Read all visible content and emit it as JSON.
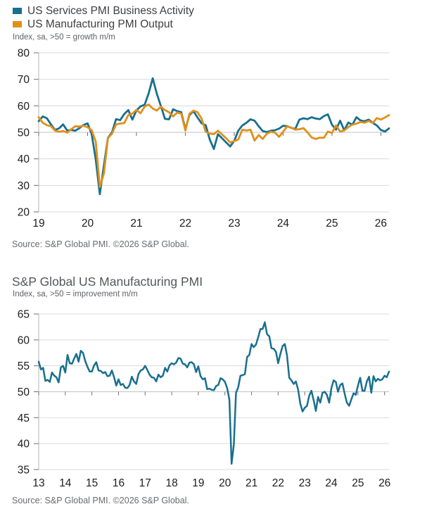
{
  "colors": {
    "teal": "#186f8e",
    "orange": "#e0901a",
    "grid": "#d9d9d9",
    "baseline": "#c0c0c0",
    "axis": "#b5b5b5",
    "tick": "#6e6e6e"
  },
  "source_note": "Source: S&P Global PMI. ©2026 S&P Global.",
  "chart2_title": "S&P Global US Manufacturing PMI",
  "chart_data": [
    {
      "type": "line",
      "subtitle": "Index, sa, >50 = growth m/m",
      "x_start": "2019-01",
      "x_freq": "monthly",
      "xtick_labels": [
        "19",
        "20",
        "21",
        "22",
        "23",
        "24",
        "25",
        "26"
      ],
      "ylim": [
        20,
        80
      ],
      "yticks": [
        20,
        30,
        40,
        50,
        60,
        70,
        80
      ],
      "baseline": 50,
      "grid": "horizontal",
      "legend_position": "top-left",
      "series": [
        {
          "name": "US Services PMI Business Activity",
          "color": "#186f8e",
          "color_key": "teal",
          "values": [
            54.2,
            56.0,
            55.3,
            53.0,
            50.9,
            51.5,
            53.0,
            50.7,
            50.9,
            50.6,
            51.6,
            52.8,
            53.4,
            49.4,
            39.8,
            26.7,
            37.5,
            47.9,
            50.0,
            55.0,
            54.6,
            56.9,
            58.4,
            54.8,
            58.3,
            59.8,
            60.4,
            64.7,
            70.4,
            64.6,
            59.9,
            55.1,
            54.9,
            58.7,
            58.0,
            57.6,
            51.2,
            56.5,
            58.0,
            55.6,
            53.4,
            52.7,
            47.3,
            43.7,
            49.3,
            47.8,
            46.2,
            44.7,
            46.8,
            50.6,
            52.6,
            53.6,
            54.9,
            54.4,
            52.3,
            50.5,
            50.1,
            50.6,
            50.8,
            51.4,
            52.5,
            52.3,
            51.7,
            51.3,
            54.8,
            55.3,
            55.0,
            55.7,
            55.2,
            55.0,
            56.1,
            56.8,
            52.9,
            51.0,
            54.4,
            50.8,
            53.7,
            52.9,
            55.7,
            54.5,
            54.2,
            54.8,
            53.6,
            52.6,
            50.9,
            50.3,
            51.5
          ]
        },
        {
          "name": "US Manufacturing PMI Output",
          "color": "#e0901a",
          "color_key": "orange",
          "values": [
            55.7,
            53.6,
            52.7,
            52.3,
            50.7,
            50.2,
            50.5,
            49.9,
            51.2,
            52.3,
            52.2,
            52.5,
            51.9,
            50.8,
            46.5,
            29.4,
            34.5,
            47.8,
            49.5,
            53.0,
            53.3,
            53.5,
            56.5,
            57.1,
            58.5,
            57.2,
            59.7,
            60.5,
            59.0,
            58.2,
            59.7,
            58.4,
            57.6,
            56.0,
            57.5,
            57.0,
            50.7,
            57.0,
            58.2,
            57.6,
            55.2,
            50.2,
            49.5,
            49.3,
            50.6,
            49.2,
            47.8,
            46.2,
            46.7,
            47.3,
            51.0,
            50.7,
            51.0,
            46.9,
            49.0,
            47.5,
            49.5,
            50.2,
            49.9,
            48.3,
            50.2,
            52.2,
            51.8,
            51.0,
            51.2,
            51.6,
            50.0,
            48.1,
            47.5,
            48.0,
            47.9,
            50.3,
            49.8,
            52.6,
            50.3,
            50.7,
            52.0,
            52.9,
            53.3,
            53.9,
            53.6,
            54.3,
            53.5,
            55.4,
            54.8,
            55.6,
            56.5
          ]
        }
      ]
    },
    {
      "type": "line",
      "title": "S&P Global US Manufacturing PMI",
      "subtitle": "Index, sa, >50 = improvement m/m",
      "x_start": "2013-01",
      "x_freq": "monthly",
      "xtick_labels": [
        "13",
        "14",
        "15",
        "16",
        "17",
        "18",
        "19",
        "20",
        "21",
        "22",
        "23",
        "24",
        "25",
        "26"
      ],
      "ylim": [
        35,
        65
      ],
      "yticks": [
        35,
        40,
        45,
        50,
        55,
        60,
        65
      ],
      "baseline": 50,
      "grid": "horizontal",
      "legend_position": "none",
      "series": [
        {
          "name": "S&P Global US Manufacturing PMI",
          "color": "#186f8e",
          "color_key": "teal",
          "values": [
            55.8,
            54.3,
            54.6,
            52.1,
            52.3,
            51.9,
            53.7,
            53.1,
            52.8,
            51.8,
            54.7,
            55.0,
            53.7,
            57.1,
            55.5,
            55.4,
            56.4,
            57.3,
            55.8,
            57.9,
            57.5,
            55.9,
            54.8,
            53.9,
            53.9,
            55.1,
            55.7,
            54.1,
            54.0,
            53.6,
            53.8,
            53.0,
            53.1,
            54.1,
            52.8,
            51.2,
            52.4,
            51.3,
            51.5,
            50.8,
            50.7,
            51.3,
            52.9,
            52.0,
            51.5,
            53.4,
            54.1,
            54.3,
            55.0,
            54.2,
            53.3,
            52.8,
            52.7,
            52.0,
            53.3,
            52.8,
            53.1,
            54.6,
            53.9,
            55.1,
            55.5,
            55.3,
            55.6,
            56.5,
            56.4,
            55.4,
            55.3,
            54.7,
            55.6,
            55.7,
            55.3,
            53.8,
            54.9,
            53.0,
            52.4,
            52.6,
            50.5,
            50.6,
            50.4,
            50.3,
            51.1,
            51.3,
            52.6,
            52.4,
            51.9,
            50.7,
            48.5,
            36.1,
            39.8,
            49.8,
            50.9,
            53.1,
            53.2,
            53.4,
            56.7,
            57.1,
            59.2,
            58.6,
            59.1,
            60.5,
            62.1,
            62.1,
            63.4,
            61.1,
            60.7,
            58.4,
            58.3,
            57.7,
            55.5,
            57.3,
            58.8,
            59.2,
            57.0,
            52.7,
            52.2,
            51.5,
            52.0,
            50.4,
            47.7,
            46.2,
            46.9,
            47.3,
            49.2,
            50.2,
            48.4,
            46.3,
            49.0,
            47.9,
            49.8,
            50.0,
            49.4,
            47.9,
            50.7,
            52.2,
            51.9,
            50.0,
            51.3,
            51.6,
            49.6,
            47.9,
            47.3,
            48.5,
            49.7,
            49.4,
            51.2,
            52.7,
            50.2,
            50.2,
            52.0,
            52.9,
            49.8,
            53.0,
            52.0,
            52.5,
            52.2,
            52.4,
            53.1,
            52.8,
            53.9
          ]
        }
      ]
    }
  ]
}
